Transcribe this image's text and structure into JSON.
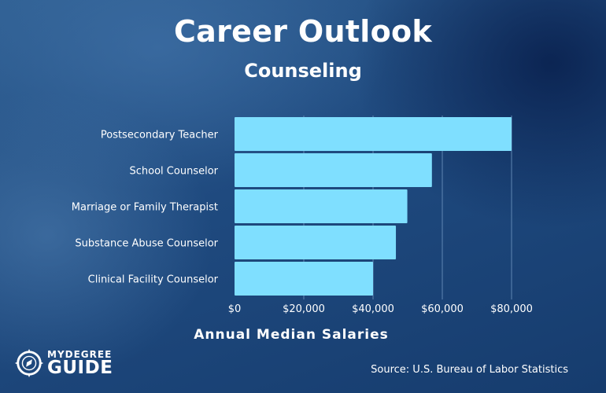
{
  "chart_data": {
    "type": "bar",
    "orientation": "horizontal",
    "title": "Career Outlook",
    "subtitle": "Counseling",
    "categories": [
      "Postsecondary Teacher",
      "School Counselor",
      "Marriage or Family Therapist",
      "Substance Abuse Counselor",
      "Clinical Facility Counselor"
    ],
    "values": [
      80000,
      57000,
      49900,
      46600,
      40000
    ],
    "xlabel": "Annual Median Salaries",
    "ylabel": "",
    "xlim": [
      0,
      80000
    ],
    "xticks": [
      0,
      20000,
      40000,
      60000,
      80000
    ],
    "xtick_labels": [
      "$0",
      "$20,000",
      "$40,000",
      "$60,000",
      "$80,000"
    ],
    "grid": "vertical",
    "bar_color": "#7fdfff",
    "grid_color": "#5f86b2"
  },
  "source": "Source: U.S. Bureau of Labor Statistics",
  "logo": {
    "top": "MYDEGREE",
    "bottom": "GUIDE",
    "icon": "compass-icon"
  }
}
